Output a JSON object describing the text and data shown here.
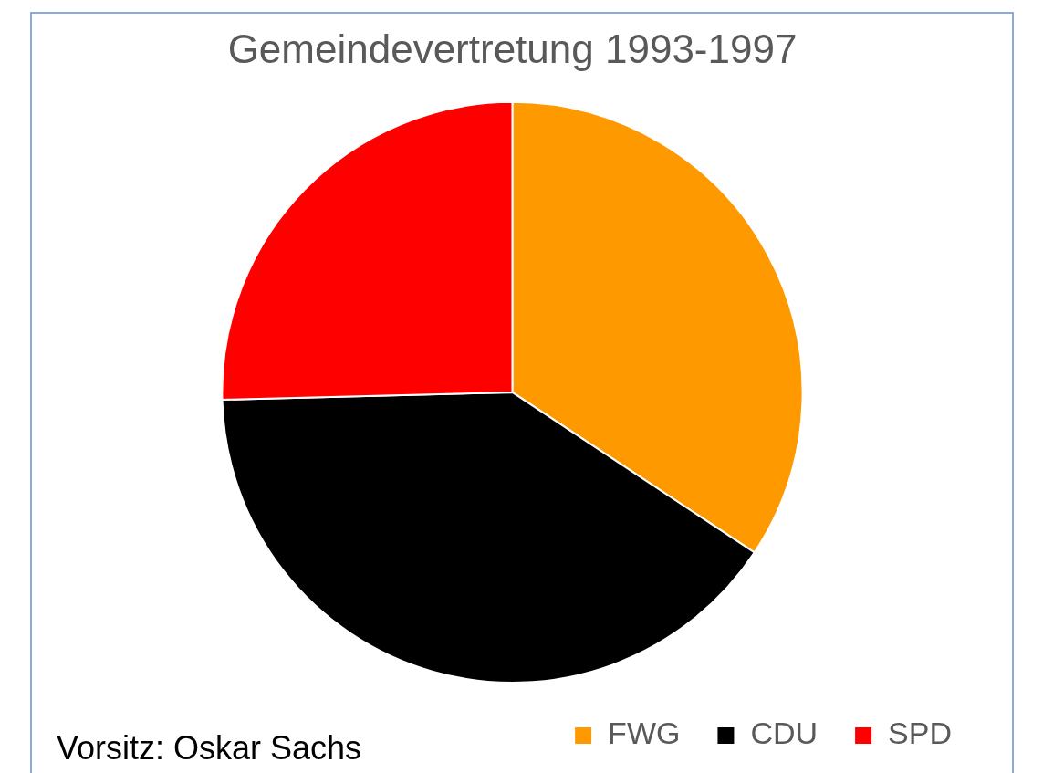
{
  "chart_data": {
    "type": "pie",
    "title": "Gemeindevertretung 1993-1997",
    "categories": [
      "FWG",
      "CDU",
      "SPD"
    ],
    "values": [
      34.3,
      40.3,
      25.4
    ],
    "colors": [
      "#ff9900",
      "#000000",
      "#ff0000"
    ],
    "legend": "bottom right",
    "annotations": [
      "Vorsitz: Oskar Sachs"
    ]
  }
}
